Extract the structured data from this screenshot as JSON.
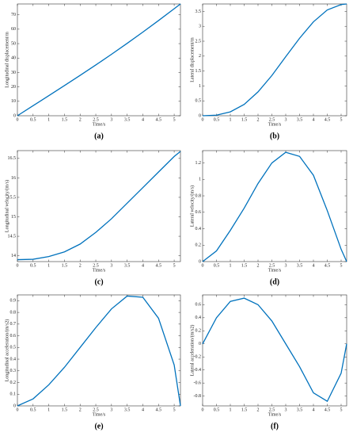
{
  "chart_data": [
    {
      "type": "line",
      "caption": "(a)",
      "xlabel": "Time/s",
      "ylabel": "Longitudinal displacement/m",
      "color": "#0072bd",
      "x": [
        0,
        0.5,
        1,
        1.5,
        2,
        2.5,
        3,
        3.5,
        4,
        4.5,
        5,
        5.2
      ],
      "values": [
        0,
        6.95,
        13.9,
        20.9,
        28,
        35.2,
        42.6,
        50.2,
        58,
        66,
        74.2,
        77.5
      ],
      "xlim": [
        0,
        5.2
      ],
      "xticks": [
        0,
        0.5,
        1,
        1.5,
        2,
        2.5,
        3,
        3.5,
        4,
        4.5,
        5
      ],
      "ylim": [
        0,
        77.5
      ],
      "yticks": [
        0,
        10,
        20,
        30,
        40,
        50,
        60,
        70
      ]
    },
    {
      "type": "line",
      "caption": "(b)",
      "xlabel": "Time/s",
      "ylabel": "Lateral displacement/m",
      "color": "#0072bd",
      "x": [
        0,
        0.5,
        1,
        1.5,
        2,
        2.5,
        3,
        3.5,
        4,
        4.5,
        5,
        5.2
      ],
      "values": [
        0,
        0.02,
        0.13,
        0.38,
        0.8,
        1.35,
        1.98,
        2.6,
        3.15,
        3.55,
        3.73,
        3.75
      ],
      "xlim": [
        0,
        5.2
      ],
      "xticks": [
        0,
        0.5,
        1,
        1.5,
        2,
        2.5,
        3,
        3.5,
        4,
        4.5,
        5
      ],
      "ylim": [
        0,
        3.75
      ],
      "yticks": [
        0,
        0.5,
        1,
        1.5,
        2,
        2.5,
        3,
        3.5
      ]
    },
    {
      "type": "line",
      "caption": "(c)",
      "xlabel": "Time/s",
      "ylabel": "Longitudinal velocity/(m/s)",
      "color": "#0072bd",
      "x": [
        0,
        0.5,
        1,
        1.5,
        2,
        2.5,
        3,
        3.5,
        4,
        4.5,
        5,
        5.2
      ],
      "values": [
        13.9,
        13.91,
        13.98,
        14.1,
        14.3,
        14.6,
        14.95,
        15.35,
        15.75,
        16.15,
        16.55,
        16.68
      ],
      "xlim": [
        0,
        5.2
      ],
      "xticks": [
        0,
        0.5,
        1,
        1.5,
        2,
        2.5,
        3,
        3.5,
        4,
        4.5,
        5
      ],
      "ylim": [
        13.85,
        16.7
      ],
      "yticks": [
        14,
        14.5,
        15,
        15.5,
        16,
        16.5
      ]
    },
    {
      "type": "line",
      "caption": "(d)",
      "xlabel": "Time/s",
      "ylabel": "Lateral velocity/(m/s)",
      "color": "#0072bd",
      "x": [
        0,
        0.5,
        1,
        1.5,
        2,
        2.5,
        3,
        3.5,
        4,
        4.5,
        5,
        5.2
      ],
      "values": [
        0,
        0.13,
        0.38,
        0.65,
        0.95,
        1.2,
        1.33,
        1.28,
        1.05,
        0.62,
        0.15,
        0
      ],
      "xlim": [
        0,
        5.2
      ],
      "xticks": [
        0,
        0.5,
        1,
        1.5,
        2,
        2.5,
        3,
        3.5,
        4,
        4.5,
        5
      ],
      "ylim": [
        0,
        1.35
      ],
      "yticks": [
        0,
        0.2,
        0.4,
        0.6,
        0.8,
        1,
        1.2
      ]
    },
    {
      "type": "line",
      "caption": "(e)",
      "xlabel": "Time/s",
      "ylabel": "Longitudinal acceleration/(m/s2)",
      "color": "#0072bd",
      "x": [
        0,
        0.5,
        1,
        1.5,
        2,
        2.5,
        3,
        3.5,
        4,
        4.5,
        5,
        5.2
      ],
      "values": [
        0,
        0.06,
        0.18,
        0.33,
        0.5,
        0.67,
        0.83,
        0.94,
        0.93,
        0.75,
        0.35,
        0
      ],
      "xlim": [
        0,
        5.2
      ],
      "xticks": [
        0,
        0.5,
        1,
        1.5,
        2,
        2.5,
        3,
        3.5,
        4,
        4.5,
        5
      ],
      "ylim": [
        0,
        0.95
      ],
      "yticks": [
        0,
        0.1,
        0.2,
        0.3,
        0.4,
        0.5,
        0.6,
        0.7,
        0.8,
        0.9
      ]
    },
    {
      "type": "line",
      "caption": "(f)",
      "xlabel": "Time/s",
      "ylabel": "Lateral acceleration/(m/s2)",
      "color": "#0072bd",
      "x": [
        0,
        0.5,
        1,
        1.5,
        2,
        2.5,
        3,
        3.5,
        4,
        4.5,
        5,
        5.2
      ],
      "values": [
        0,
        0.4,
        0.65,
        0.7,
        0.6,
        0.35,
        0,
        -0.35,
        -0.75,
        -0.88,
        -0.45,
        0
      ],
      "xlim": [
        0,
        5.2
      ],
      "xticks": [
        0,
        0.5,
        1,
        1.5,
        2,
        2.5,
        3,
        3.5,
        4,
        4.5,
        5
      ],
      "ylim": [
        -0.95,
        0.75
      ],
      "yticks": [
        -0.8,
        -0.6,
        -0.4,
        -0.2,
        0,
        0.2,
        0.4,
        0.6
      ]
    }
  ]
}
